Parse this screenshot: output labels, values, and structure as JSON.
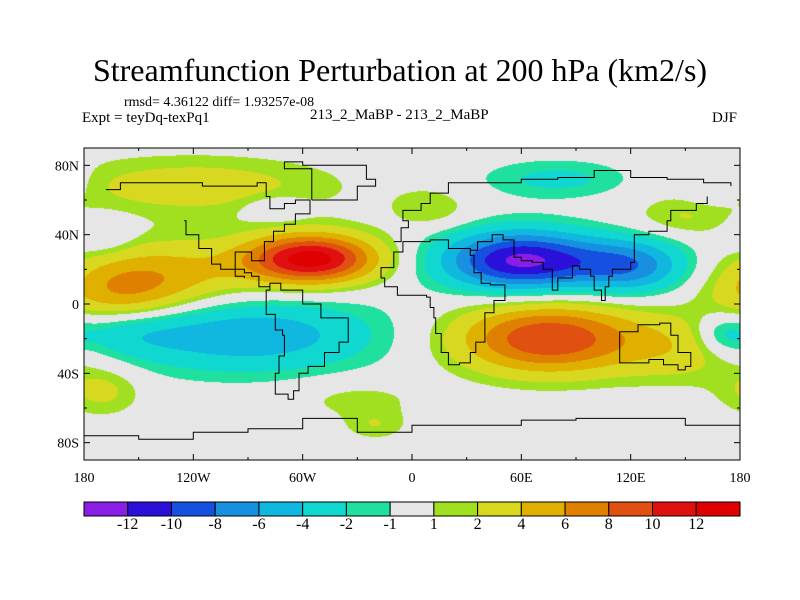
{
  "chart_data": {
    "type": "heatmap",
    "title": "Streamfunction Perturbation at 200 hPa (km2/s)",
    "stats_line": "rmsd= 4.36122 diff= 1.93257e-08",
    "left_label": "Expt = teyDq-texPq1",
    "center_label": "213_2_MaBP - 213_2_MaBP",
    "season": "DJF",
    "x_range": [
      -180,
      180
    ],
    "y_range": [
      -90,
      90
    ],
    "x_ticks": [
      {
        "value": -180,
        "label": "180"
      },
      {
        "value": -120,
        "label": "120W"
      },
      {
        "value": -60,
        "label": "60W"
      },
      {
        "value": 0,
        "label": "0"
      },
      {
        "value": 60,
        "label": "60E"
      },
      {
        "value": 120,
        "label": "120E"
      },
      {
        "value": 180,
        "label": "180"
      }
    ],
    "y_ticks": [
      {
        "value": 80,
        "label": "80N"
      },
      {
        "value": 40,
        "label": "40N"
      },
      {
        "value": 0,
        "label": "0"
      },
      {
        "value": -40,
        "label": "40S"
      },
      {
        "value": -80,
        "label": "80S"
      }
    ],
    "contour_levels": [
      -12,
      -10,
      -8,
      -6,
      -4,
      -2,
      -1,
      1,
      2,
      4,
      6,
      8,
      10,
      12
    ],
    "colorbar_labels": [
      "-12",
      "-10",
      "-8",
      "-6",
      "-4",
      "-2",
      "-1",
      "1",
      "2",
      "4",
      "6",
      "8",
      "10",
      "12"
    ],
    "colors": [
      "#8a1ee6",
      "#2a10d8",
      "#1550e0",
      "#1890e0",
      "#10b8e0",
      "#10d8d0",
      "#20e0a0",
      "#e6e6e6",
      "#a0e020",
      "#d8d820",
      "#e0b000",
      "#e08000",
      "#e05010",
      "#e01010",
      "#e00000"
    ],
    "field_centers": [
      {
        "lon": -55,
        "lat": 26,
        "value": 13.0,
        "sx": 25,
        "sy": 10
      },
      {
        "lon": -130,
        "lat": 18,
        "value": 4.0,
        "sx": 35,
        "sy": 14
      },
      {
        "lon": -160,
        "lat": 5,
        "value": 5.0,
        "sx": 25,
        "sy": 14
      },
      {
        "lon": 60,
        "lat": 25,
        "value": -12.5,
        "sx": 30,
        "sy": 12
      },
      {
        "lon": 120,
        "lat": 22,
        "value": -7.0,
        "sx": 22,
        "sy": 11
      },
      {
        "lon": 75,
        "lat": -20,
        "value": 10.0,
        "sx": 35,
        "sy": 14
      },
      {
        "lon": 150,
        "lat": -25,
        "value": 3.0,
        "sx": 25,
        "sy": 14
      },
      {
        "lon": -90,
        "lat": -18,
        "value": -5.5,
        "sx": 50,
        "sy": 15
      },
      {
        "lon": -160,
        "lat": -15,
        "value": -3.0,
        "sx": 25,
        "sy": 10
      },
      {
        "lon": -120,
        "lat": 68,
        "value": 3.0,
        "sx": 55,
        "sy": 12
      },
      {
        "lon": -75,
        "lat": 55,
        "value": -2.0,
        "sx": 12,
        "sy": 5
      },
      {
        "lon": 80,
        "lat": 72,
        "value": -2.5,
        "sx": 30,
        "sy": 8
      },
      {
        "lon": 10,
        "lat": 55,
        "value": 2.0,
        "sx": 15,
        "sy": 8
      },
      {
        "lon": 150,
        "lat": 50,
        "value": 2.0,
        "sx": 20,
        "sy": 8
      },
      {
        "lon": -170,
        "lat": 40,
        "value": -2.0,
        "sx": 12,
        "sy": 8
      },
      {
        "lon": 165,
        "lat": 70,
        "value": -2.0,
        "sx": 12,
        "sy": 10
      },
      {
        "lon": -20,
        "lat": -70,
        "value": 1.8,
        "sx": 12,
        "sy": 6
      },
      {
        "lon": 170,
        "lat": -18,
        "value": -2.5,
        "sx": 10,
        "sy": 8
      },
      {
        "lon": -30,
        "lat": -55,
        "value": 1.5,
        "sx": 25,
        "sy": 8
      },
      {
        "lon": -170,
        "lat": -50,
        "value": 2.5,
        "sx": 15,
        "sy": 10
      }
    ]
  }
}
